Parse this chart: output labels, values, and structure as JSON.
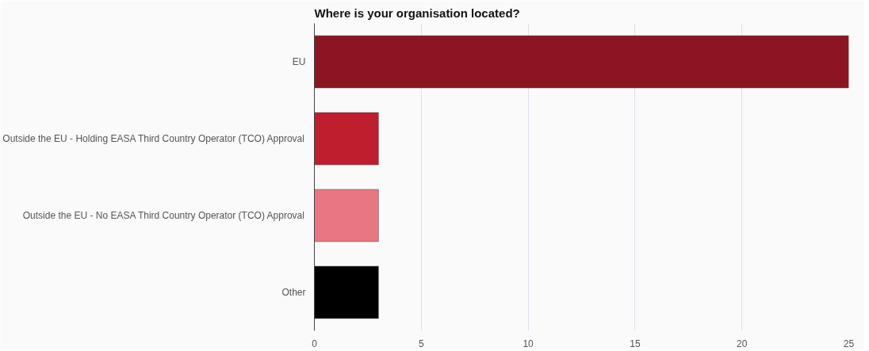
{
  "chart_data": {
    "type": "bar",
    "orientation": "horizontal",
    "title": "Where is your organisation located?",
    "categories": [
      "EU",
      "Outside the EU - Holding EASA Third Country Operator (TCO) Approval",
      "Outside the EU - No EASA Third Country Operator (TCO) Approval",
      "Other"
    ],
    "values": [
      25,
      3,
      3,
      3
    ],
    "colors": [
      "#8b1622",
      "#be1e2d",
      "#e97782",
      "#000000"
    ],
    "xlim": [
      0,
      25
    ],
    "xticks": [
      0,
      5,
      10,
      15,
      20,
      25
    ],
    "grid": "x"
  }
}
